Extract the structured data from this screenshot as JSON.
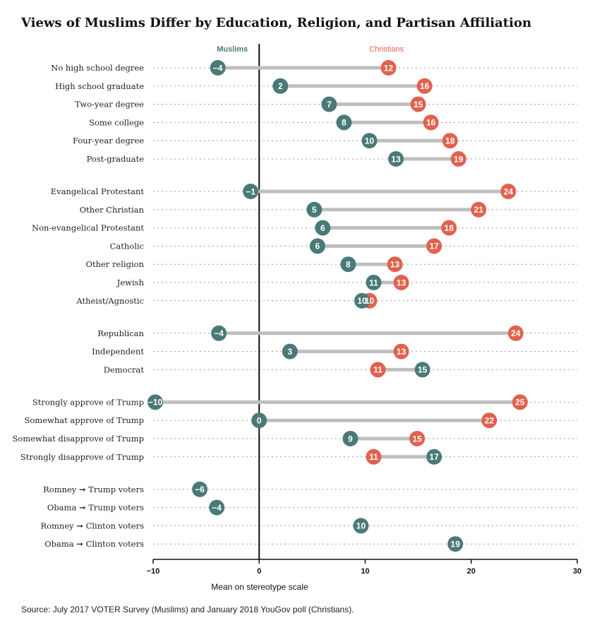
{
  "title": "Views of Muslims Differ by Education, Religion, and Partisan Affiliation",
  "source": "Source: July 2017 VOTER Survey (Muslims) and January 2018 YouGov poll (Christians).",
  "colors": {
    "muslims": "#4a7a78",
    "christians": "#e2614d",
    "connector": "#bfbfbf",
    "gridline": "#9a9a9a",
    "axis": "#111111"
  },
  "chart_data": {
    "type": "dumbbell",
    "xlabel": "Mean on stereotype scale",
    "xlim": [
      -10,
      30
    ],
    "xticks": [
      -10,
      0,
      10,
      20,
      30
    ],
    "xtick_labels": [
      "−10",
      "0",
      "10",
      "20",
      "30"
    ],
    "series_names": {
      "muslims": "Muslims",
      "christians": "Christians"
    },
    "groups": [
      {
        "rows": [
          {
            "label": "No high school degree",
            "muslims": -3.9,
            "christians": 12.2
          },
          {
            "label": "High school graduate",
            "muslims": 2.0,
            "christians": 15.6
          },
          {
            "label": "Two-year degree",
            "muslims": 6.6,
            "christians": 15.0
          },
          {
            "label": "Some college",
            "muslims": 8.0,
            "christians": 16.2
          },
          {
            "label": "Four-year degree",
            "muslims": 10.4,
            "christians": 18.0
          },
          {
            "label": "Post-graduate",
            "muslims": 12.9,
            "christians": 18.8
          }
        ]
      },
      {
        "rows": [
          {
            "label": "Evangelical Protestant",
            "muslims": -0.8,
            "christians": 23.5
          },
          {
            "label": "Other Christian",
            "muslims": 5.2,
            "christians": 20.7
          },
          {
            "label": "Non-evangelical Protestant",
            "muslims": 6.0,
            "christians": 17.9
          },
          {
            "label": "Catholic",
            "muslims": 5.5,
            "christians": 16.5
          },
          {
            "label": "Other religion",
            "muslims": 8.4,
            "christians": 12.8
          },
          {
            "label": "Jewish",
            "muslims": 10.8,
            "christians": 13.4
          },
          {
            "label": "Atheist/Agnostic",
            "muslims": 9.7,
            "christians": 10.4
          }
        ]
      },
      {
        "rows": [
          {
            "label": "Republican",
            "muslims": -3.8,
            "christians": 24.2
          },
          {
            "label": "Independent",
            "muslims": 2.9,
            "christians": 13.4
          },
          {
            "label": "Democrat",
            "muslims": 15.4,
            "christians": 11.2
          }
        ]
      },
      {
        "rows": [
          {
            "label": "Strongly approve of Trump",
            "muslims": -9.8,
            "christians": 24.6
          },
          {
            "label": "Somewhat approve of Trump",
            "muslims": 0.0,
            "christians": 21.7
          },
          {
            "label": "Somewhat disapprove of Trump",
            "muslims": 8.6,
            "christians": 14.9
          },
          {
            "label": "Strongly disapprove of Trump",
            "muslims": 16.5,
            "christians": 10.8
          }
        ]
      },
      {
        "rows": [
          {
            "label": "Romney ➞ Trump voters",
            "muslims": -5.6,
            "christians": null
          },
          {
            "label": "Obama ➞ Trump voters",
            "muslims": -4.0,
            "christians": null
          },
          {
            "label": "Romney ➞ Clinton voters",
            "muslims": 9.6,
            "christians": null
          },
          {
            "label": "Obama ➞ Clinton voters",
            "muslims": 18.5,
            "christians": null
          }
        ]
      }
    ]
  }
}
